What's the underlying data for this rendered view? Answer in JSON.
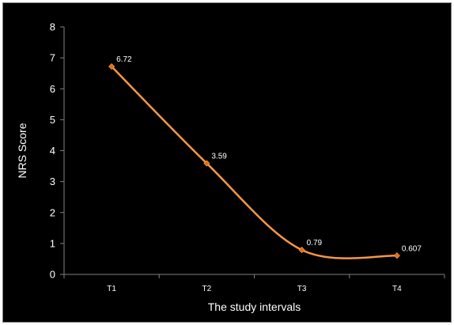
{
  "chart_data": {
    "type": "line",
    "title": "",
    "xlabel": "The study intervals",
    "ylabel": "NRS Score",
    "categories": [
      "T1",
      "T2",
      "T3",
      "T4"
    ],
    "series": [
      {
        "values": [
          6.72,
          3.59,
          0.79,
          0.607
        ],
        "labels": [
          "6.72",
          "3.59",
          "0.79",
          "0.607"
        ],
        "smooth": true,
        "marker": "diamond"
      }
    ],
    "ylim": [
      0,
      8
    ],
    "yticks": [
      "0",
      "1",
      "2",
      "3",
      "4",
      "5",
      "6",
      "7",
      "8"
    ],
    "grid": false,
    "legend": "none",
    "colors": {
      "background": "#000000",
      "line": "#f79646",
      "marker": "#e46c0a",
      "axis": "#7f7f7f",
      "text": "#ffffff"
    }
  }
}
